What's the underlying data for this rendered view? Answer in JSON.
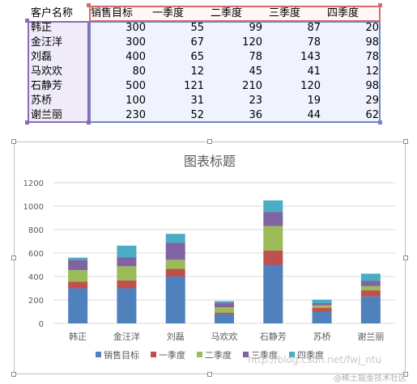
{
  "table": {
    "headers": [
      "客户名称",
      "销售目标",
      "一季度",
      "二季度",
      "三季度",
      "四季度"
    ],
    "rows": [
      [
        "韩正",
        "300",
        "55",
        "99",
        "87",
        "20"
      ],
      [
        "金汪洋",
        "300",
        "67",
        "120",
        "78",
        "98"
      ],
      [
        "刘磊",
        "400",
        "65",
        "78",
        "143",
        "78"
      ],
      [
        "马欢欢",
        "80",
        "12",
        "45",
        "41",
        "12"
      ],
      [
        "石静芳",
        "500",
        "121",
        "210",
        "120",
        "98"
      ],
      [
        "苏桥",
        "100",
        "31",
        "23",
        "19",
        "29"
      ],
      [
        "谢兰丽",
        "230",
        "52",
        "36",
        "44",
        "62"
      ]
    ]
  },
  "chart_data": {
    "type": "bar",
    "stacked": true,
    "title": "图表标题",
    "categories": [
      "韩正",
      "金汪洋",
      "刘磊",
      "马欢欢",
      "石静芳",
      "苏桥",
      "谢兰丽"
    ],
    "series": [
      {
        "name": "销售目标",
        "color": "#4f81bd",
        "values": [
          300,
          300,
          400,
          80,
          500,
          100,
          230
        ]
      },
      {
        "name": "一季度",
        "color": "#c0504d",
        "values": [
          55,
          67,
          65,
          12,
          121,
          31,
          52
        ]
      },
      {
        "name": "二季度",
        "color": "#9bbb59",
        "values": [
          99,
          120,
          78,
          45,
          210,
          23,
          36
        ]
      },
      {
        "name": "三季度",
        "color": "#8064a2",
        "values": [
          87,
          78,
          143,
          41,
          120,
          19,
          44
        ]
      },
      {
        "name": "四季度",
        "color": "#4bacc6",
        "values": [
          20,
          98,
          78,
          12,
          98,
          29,
          62
        ]
      }
    ],
    "ylim": [
      0,
      1200
    ],
    "yticks": [
      0,
      200,
      400,
      600,
      800,
      1000,
      1200
    ],
    "grid": true,
    "legend": "bottom"
  },
  "watermark": "http://blog.csdn.net/fwj_ntu",
  "watermark_brand": "@稀土掘金技术社区"
}
